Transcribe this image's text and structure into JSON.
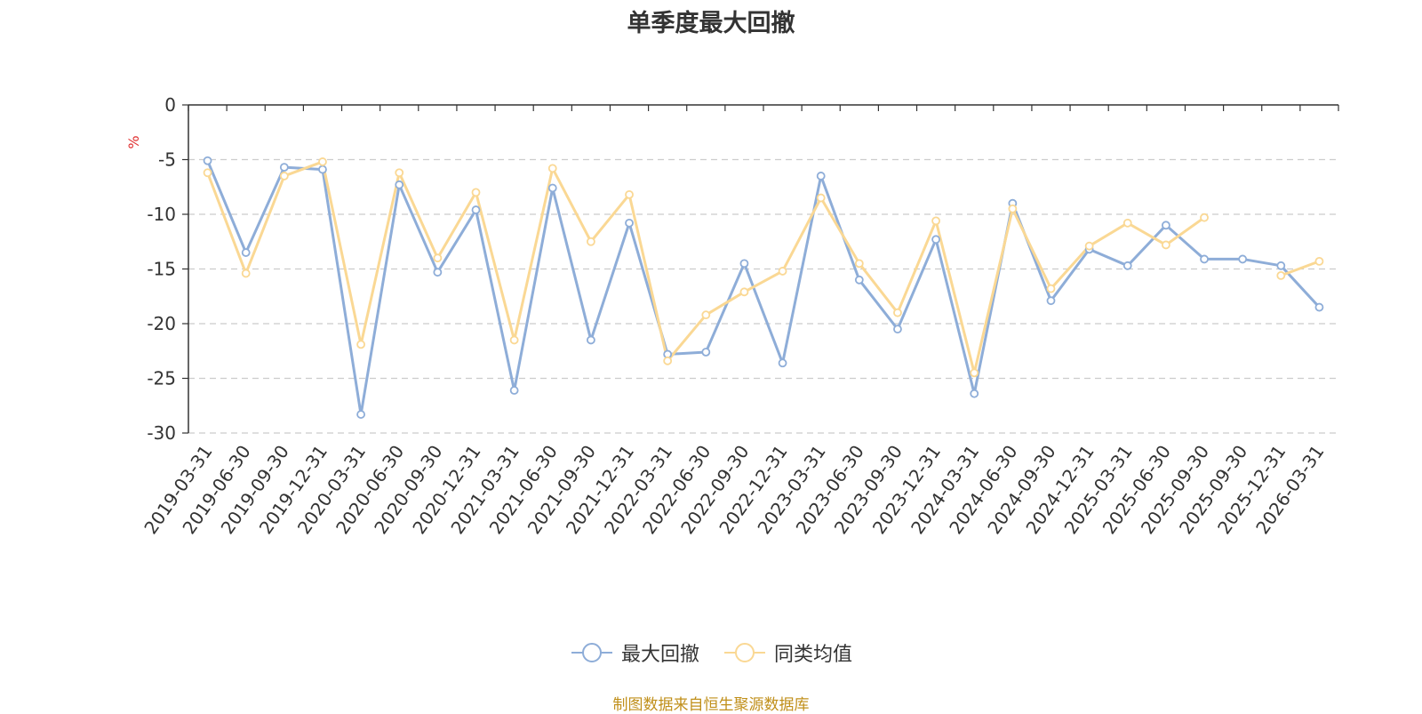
{
  "colors": {
    "series1": "#8eadd8",
    "series2": "#fad894",
    "axis": "#333333",
    "grid": "#cccccc",
    "unit": "#e03030",
    "source": "#c08f1a"
  },
  "chart_data": {
    "type": "line",
    "title": "单季度最大回撤",
    "ylabel": "%",
    "xlabel": "",
    "ylim": [
      -30,
      0
    ],
    "yticks": [
      0,
      -5,
      -10,
      -15,
      -20,
      -25,
      -30
    ],
    "grid": true,
    "legend_position": "bottom",
    "categories": [
      "2019-03-31",
      "2019-06-30",
      "2019-09-30",
      "2019-12-31",
      "2020-03-31",
      "2020-06-30",
      "2020-09-30",
      "2020-12-31",
      "2021-03-31",
      "2021-06-30",
      "2021-09-30",
      "2021-12-31",
      "2022-03-31",
      "2022-06-30",
      "2022-09-30",
      "2022-12-31",
      "2023-03-31",
      "2023-06-30",
      "2023-09-30",
      "2023-12-31",
      "2024-03-31",
      "2024-06-30",
      "2024-09-30",
      "2024-12-31",
      "2025-03-31",
      "2025-06-30",
      "2025-09-30",
      "2025-09-30",
      "2025-12-31",
      "2026-03-31"
    ],
    "series": [
      {
        "name": "最大回撤",
        "values": [
          -5.1,
          -13.5,
          -5.7,
          -5.9,
          -28.3,
          -7.3,
          -15.3,
          -9.6,
          -26.1,
          -7.6,
          -21.5,
          -10.8,
          -22.8,
          -22.6,
          -14.5,
          -23.6,
          -6.5,
          -16.0,
          -20.5,
          -12.3,
          -26.4,
          -9.0,
          -17.9,
          -13.2,
          -14.7,
          -11.0,
          -14.1,
          -14.1,
          -14.7,
          -18.5
        ]
      },
      {
        "name": "同类均值",
        "values": [
          -6.2,
          -15.4,
          -6.5,
          -5.2,
          -21.9,
          -6.2,
          -14.0,
          -8.0,
          -21.5,
          -5.8,
          -12.5,
          -8.2,
          -23.4,
          -19.2,
          -17.1,
          -15.2,
          -8.5,
          -14.5,
          -19.0,
          -10.6,
          -24.5,
          -9.5,
          -16.8,
          -12.9,
          -10.8,
          -12.8,
          -10.3,
          null,
          -15.6,
          -14.3
        ]
      }
    ]
  },
  "footer": {
    "source": "制图数据来自恒生聚源数据库"
  }
}
